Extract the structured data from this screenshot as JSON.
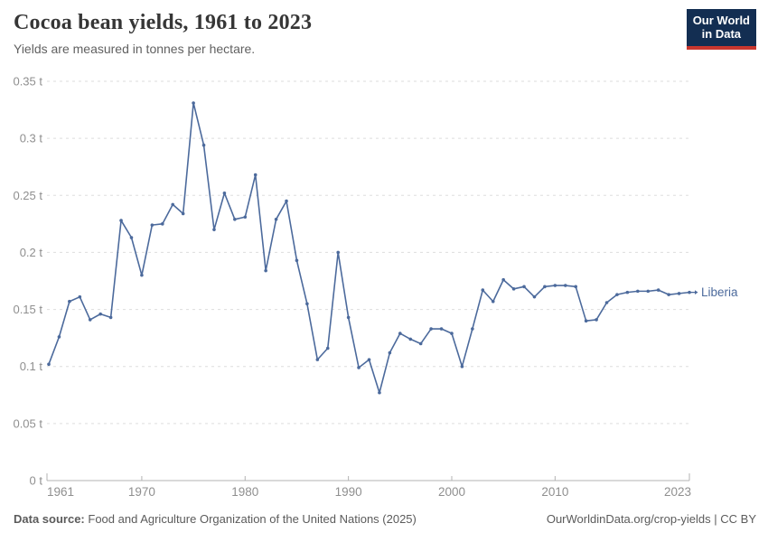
{
  "header": {
    "title": "Cocoa bean yields, 1961 to 2023",
    "subtitle": "Yields are measured in tonnes per hectare."
  },
  "logo": {
    "line1": "Our World",
    "line2": "in Data"
  },
  "chart_data": {
    "type": "line",
    "title": "Cocoa bean yields, 1961 to 2023",
    "xlabel": "",
    "ylabel": "tonnes per hectare",
    "ylim": [
      0,
      0.35
    ],
    "grid": "horizontal-dashed",
    "legend_position": "end-of-line-label",
    "yticks": [
      {
        "value": 0,
        "label": "0 t"
      },
      {
        "value": 0.05,
        "label": "0.05 t"
      },
      {
        "value": 0.1,
        "label": "0.1 t"
      },
      {
        "value": 0.15,
        "label": "0.15 t"
      },
      {
        "value": 0.2,
        "label": "0.2 t"
      },
      {
        "value": 0.25,
        "label": "0.25 t"
      },
      {
        "value": 0.3,
        "label": "0.3 t"
      },
      {
        "value": 0.35,
        "label": "0.35 t"
      }
    ],
    "xticks": [
      1961,
      1970,
      1980,
      1990,
      2000,
      2010,
      2023
    ],
    "x": [
      1961,
      1962,
      1963,
      1964,
      1965,
      1966,
      1967,
      1968,
      1969,
      1970,
      1971,
      1972,
      1973,
      1974,
      1975,
      1976,
      1977,
      1978,
      1979,
      1980,
      1981,
      1982,
      1983,
      1984,
      1985,
      1986,
      1987,
      1988,
      1989,
      1990,
      1991,
      1992,
      1993,
      1994,
      1995,
      1996,
      1997,
      1998,
      1999,
      2000,
      2001,
      2002,
      2003,
      2004,
      2005,
      2006,
      2007,
      2008,
      2009,
      2010,
      2011,
      2012,
      2013,
      2014,
      2015,
      2016,
      2017,
      2018,
      2019,
      2020,
      2021,
      2022,
      2023
    ],
    "series": [
      {
        "name": "Liberia",
        "color": "#4C6A9C",
        "values": [
          0.102,
          0.126,
          0.157,
          0.161,
          0.141,
          0.146,
          0.143,
          0.228,
          0.213,
          0.18,
          0.224,
          0.225,
          0.242,
          0.234,
          0.331,
          0.294,
          0.22,
          0.252,
          0.229,
          0.231,
          0.268,
          0.184,
          0.229,
          0.245,
          0.193,
          0.155,
          0.106,
          0.116,
          0.2,
          0.143,
          0.099,
          0.106,
          0.077,
          0.112,
          0.129,
          0.124,
          0.12,
          0.133,
          0.133,
          0.129,
          0.1,
          0.133,
          0.167,
          0.157,
          0.176,
          0.168,
          0.17,
          0.161,
          0.17,
          0.171,
          0.171,
          0.17,
          0.14,
          0.141,
          0.156,
          0.163,
          0.165,
          0.166,
          0.166,
          0.167,
          0.163,
          0.164,
          0.165
        ]
      }
    ]
  },
  "footer": {
    "source_label": "Data source:",
    "source_text": "Food and Agriculture Organization of the United Nations (2025)",
    "right_text": "OurWorldinData.org/crop-yields | CC BY"
  },
  "colors": {
    "line": "#4C6A9C",
    "grid": "#dddddd",
    "axis": "#b3b3b3",
    "tick_label": "#8f8f8f",
    "title": "#363636",
    "subtitle": "#616161",
    "footer": "#5b5b5b",
    "logo_bg": "#132e52",
    "logo_accent": "#c9372e"
  }
}
